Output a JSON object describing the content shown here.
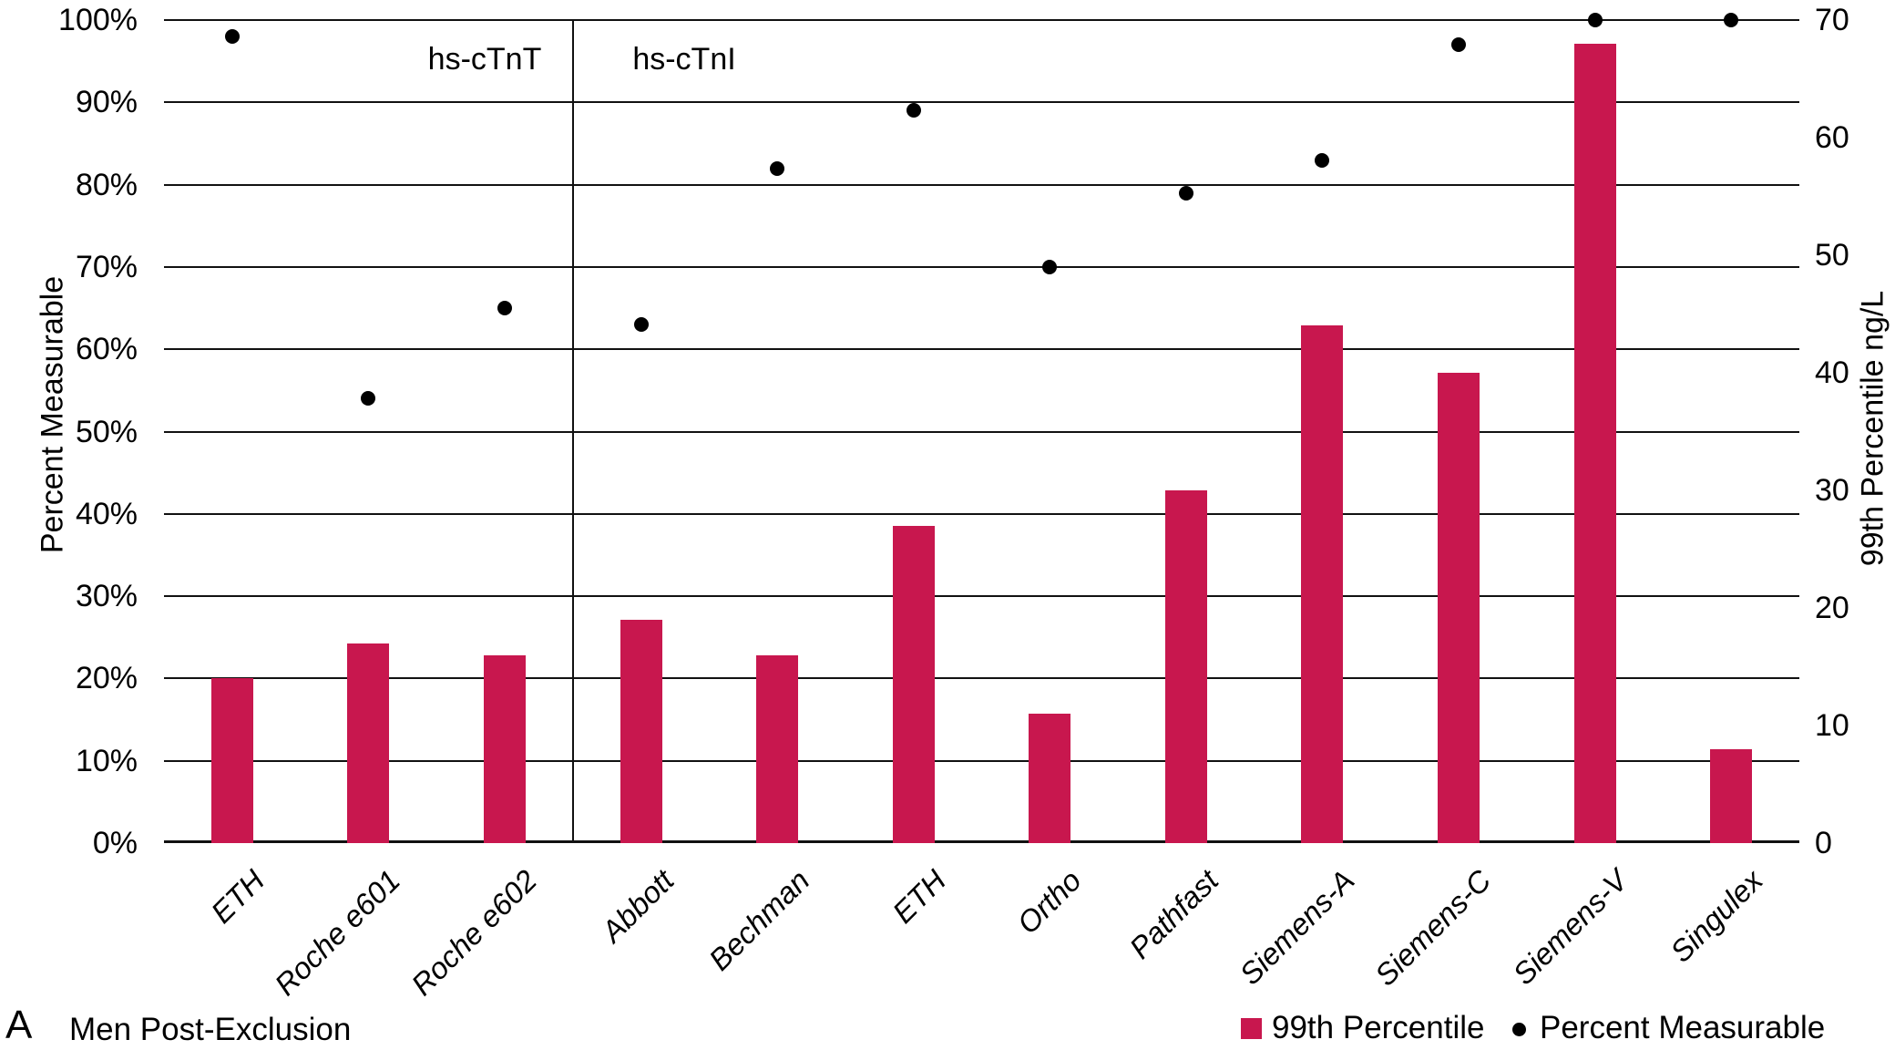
{
  "panel": {
    "letter": "A",
    "title": "Men Post-Exclusion"
  },
  "legend": {
    "bar_label": "99th Percentile",
    "dot_label": "Percent Measurable"
  },
  "chart_data": {
    "type": "bar",
    "categories": [
      "ETH",
      "Roche e601",
      "Roche e602",
      "Abbott",
      "Bechman",
      "ETH",
      "Ortho",
      "Pathfast",
      "Siemens-A",
      "Siemens-C",
      "Siemens-V",
      "Singulex"
    ],
    "series": [
      {
        "name": "99th Percentile",
        "type": "bar",
        "axis": "right",
        "values": [
          14,
          17,
          16,
          19,
          16,
          27,
          11,
          30,
          44,
          40,
          68,
          8
        ]
      },
      {
        "name": "Percent Measurable",
        "type": "scatter",
        "axis": "left",
        "values": [
          98,
          54,
          65,
          63,
          82,
          89,
          70,
          79,
          83,
          97,
          100,
          100
        ]
      }
    ],
    "left_axis": {
      "label": "Percent Measurable",
      "min": 0,
      "max": 100,
      "tick_labels": [
        "0%",
        "10%",
        "20%",
        "30%",
        "40%",
        "50%",
        "60%",
        "70%",
        "80%",
        "90%",
        "100%"
      ]
    },
    "right_axis": {
      "label": "99th Percentile ng/L",
      "min": 0,
      "max": 70,
      "tick_labels": [
        "0",
        "10",
        "20",
        "30",
        "40",
        "50",
        "60",
        "70"
      ]
    },
    "group_labels": [
      {
        "label": "hs-cTnT",
        "covers_categories": [
          0,
          2
        ]
      },
      {
        "label": "hs-cTnI",
        "covers_categories": [
          3,
          11
        ]
      }
    ],
    "divider_after_index": 2,
    "grid": true,
    "legend_position": "bottom-right",
    "bar_color": "#C8174E",
    "dot_color": "#000000"
  }
}
